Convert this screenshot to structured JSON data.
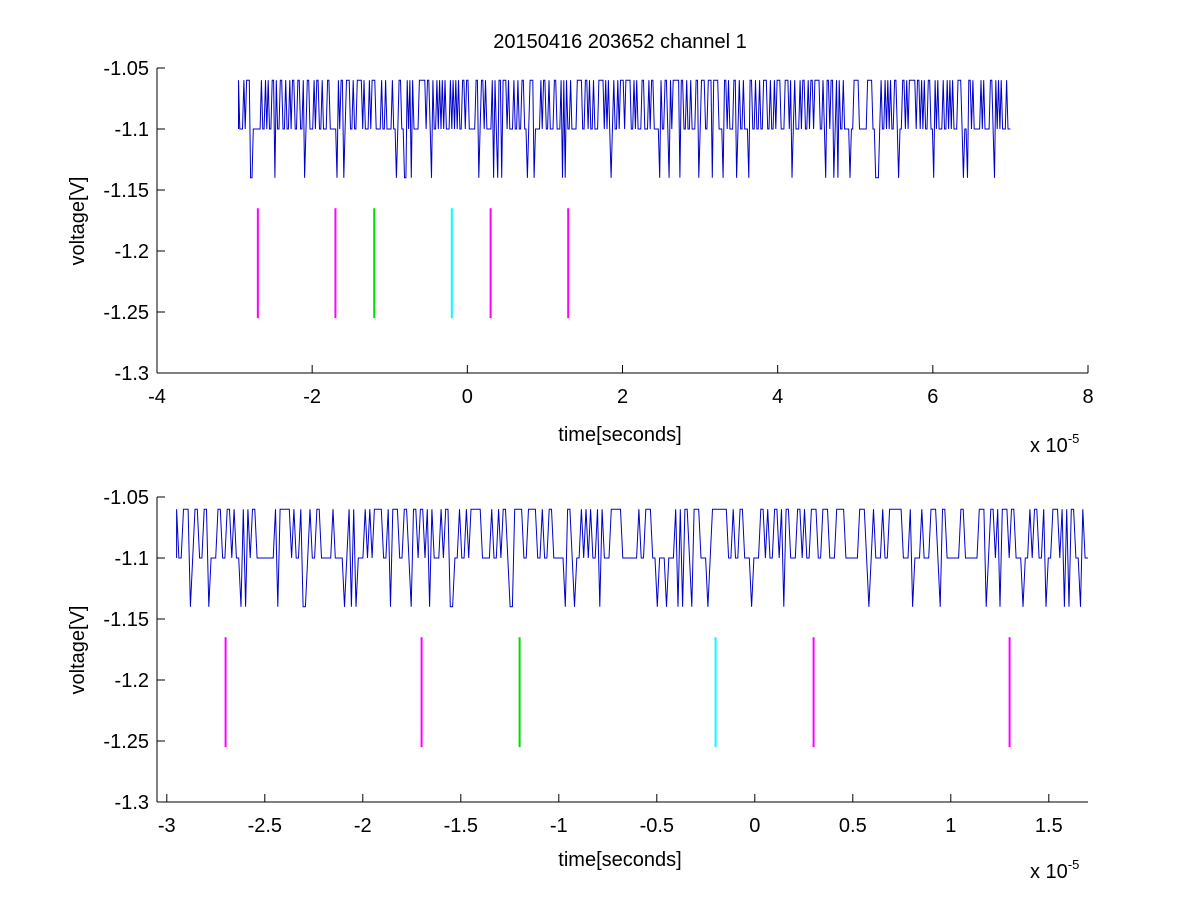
{
  "figure_title": "20150416 203652 channel 1",
  "colors": {
    "signal": "#0000cc",
    "marker_magenta": "#ff00ff",
    "marker_green": "#00dd00",
    "marker_cyan": "#00ffff",
    "axes": "#000000"
  },
  "chart_data": [
    {
      "type": "line",
      "title": "20150416 203652 channel 1",
      "xlabel": "time[seconds]",
      "ylabel": "voltage[V]",
      "x_exponent_label": "x 10",
      "x_exponent": "-5",
      "xlim": [
        -4,
        8
      ],
      "ylim": [
        -1.3,
        -1.05
      ],
      "xticks": [
        -4,
        -2,
        0,
        2,
        4,
        6,
        8
      ],
      "xtick_labels": [
        "-4",
        "-2",
        "0",
        "2",
        "4",
        "6",
        "8"
      ],
      "yticks": [
        -1.05,
        -1.1,
        -1.15,
        -1.2,
        -1.25,
        -1.3
      ],
      "ytick_labels": [
        "-1.05",
        "-1.1",
        "-1.15",
        "-1.2",
        "-1.25",
        "-1.3"
      ],
      "grid": false,
      "signal": {
        "x_range": [
          -2.95,
          7.0
        ],
        "levels": [
          -1.06,
          -1.1,
          -1.14
        ],
        "baseline": -1.1,
        "seed": 7
      },
      "markers": [
        {
          "x": -2.7,
          "y_range": [
            -1.255,
            -1.165
          ],
          "color": "magenta"
        },
        {
          "x": -1.7,
          "y_range": [
            -1.255,
            -1.165
          ],
          "color": "magenta"
        },
        {
          "x": -1.2,
          "y_range": [
            -1.255,
            -1.165
          ],
          "color": "green"
        },
        {
          "x": -0.2,
          "y_range": [
            -1.255,
            -1.165
          ],
          "color": "cyan"
        },
        {
          "x": 0.3,
          "y_range": [
            -1.255,
            -1.165
          ],
          "color": "magenta"
        },
        {
          "x": 1.3,
          "y_range": [
            -1.255,
            -1.165
          ],
          "color": "magenta"
        }
      ]
    },
    {
      "type": "line",
      "title": "",
      "xlabel": "time[seconds]",
      "ylabel": "voltage[V]",
      "x_exponent_label": "x 10",
      "x_exponent": "-5",
      "xlim": [
        -3.05,
        1.7
      ],
      "ylim": [
        -1.3,
        -1.05
      ],
      "xticks": [
        -3,
        -2.5,
        -2,
        -1.5,
        -1,
        -0.5,
        0,
        0.5,
        1,
        1.5
      ],
      "xtick_labels": [
        "-3",
        "-2.5",
        "-2",
        "-1.5",
        "-1",
        "-0.5",
        "0",
        "0.5",
        "1",
        "1.5"
      ],
      "yticks": [
        -1.05,
        -1.1,
        -1.15,
        -1.2,
        -1.25,
        -1.3
      ],
      "ytick_labels": [
        "-1.05",
        "-1.1",
        "-1.15",
        "-1.2",
        "-1.25",
        "-1.3"
      ],
      "grid": false,
      "signal": {
        "x_range": [
          -2.95,
          1.7
        ],
        "levels": [
          -1.06,
          -1.1,
          -1.14
        ],
        "baseline": -1.1,
        "seed": 13
      },
      "markers": [
        {
          "x": -2.7,
          "y_range": [
            -1.255,
            -1.165
          ],
          "color": "magenta"
        },
        {
          "x": -1.7,
          "y_range": [
            -1.255,
            -1.165
          ],
          "color": "magenta"
        },
        {
          "x": -1.2,
          "y_range": [
            -1.255,
            -1.165
          ],
          "color": "green"
        },
        {
          "x": -0.2,
          "y_range": [
            -1.255,
            -1.165
          ],
          "color": "cyan"
        },
        {
          "x": 0.3,
          "y_range": [
            -1.255,
            -1.165
          ],
          "color": "magenta"
        },
        {
          "x": 1.3,
          "y_range": [
            -1.255,
            -1.165
          ],
          "color": "magenta"
        }
      ]
    }
  ]
}
